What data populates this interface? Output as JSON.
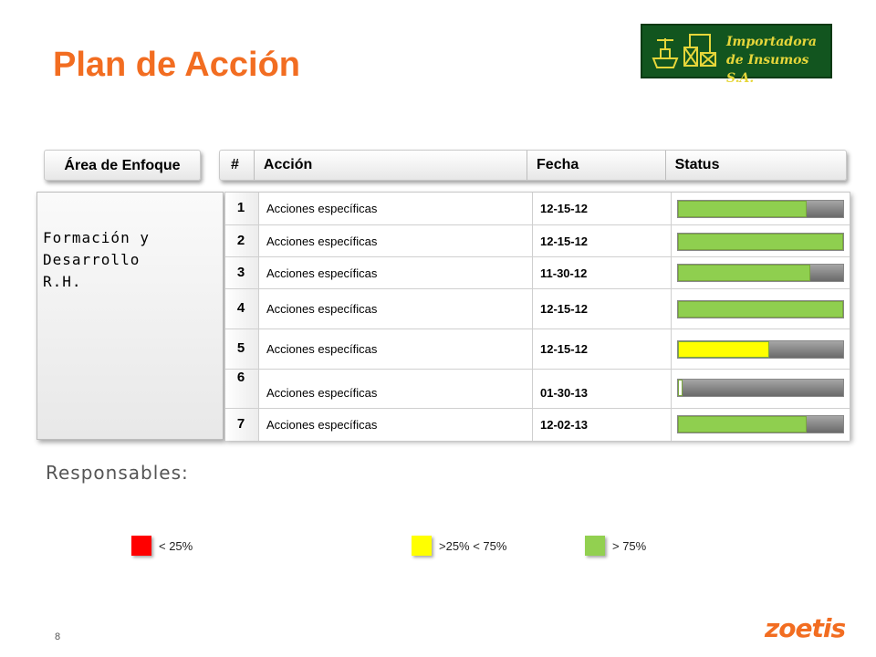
{
  "slide": {
    "title": "Plan de Acción",
    "page_number": "8",
    "brand": "zoetis"
  },
  "logo": {
    "line1": "Importadora",
    "line2": "de Insumos S.A."
  },
  "headers": {
    "area": "Área de Enfoque",
    "num": "#",
    "accion": "Acción",
    "fecha": "Fecha",
    "status": "Status"
  },
  "area": {
    "text": "Formación y\nDesarrollo\nR.H."
  },
  "rows": [
    {
      "num": "1",
      "accion": "Acciones específicas",
      "fecha": "12-15-12",
      "progress": 0.78,
      "color": "#8fcf4f"
    },
    {
      "num": "2",
      "accion": "Acciones específicas",
      "fecha": "12-15-12",
      "progress": 1.0,
      "color": "#8fcf4f"
    },
    {
      "num": "3",
      "accion": "Acciones específicas",
      "fecha": "11-30-12",
      "progress": 0.8,
      "color": "#8fcf4f"
    },
    {
      "num": "4",
      "accion": "Acciones específicas",
      "fecha": "12-15-12",
      "progress": 1.0,
      "color": "#8fcf4f"
    },
    {
      "num": "5",
      "accion": "Acciones específicas",
      "fecha": "12-15-12",
      "progress": 0.55,
      "color": "#ffff00"
    },
    {
      "num": "6",
      "accion": "Acciones específicas",
      "fecha": "01-30-13",
      "progress": 0.03,
      "color": "#ffffff"
    },
    {
      "num": "7",
      "accion": "Acciones específicas",
      "fecha": "12-02-13",
      "progress": 0.78,
      "color": "#8fcf4f"
    }
  ],
  "responsables_label": "Responsables:",
  "legend": [
    {
      "label": "< 25%",
      "color": "#ff0000"
    },
    {
      "label": ">25% < 75%",
      "color": "#ffff00"
    },
    {
      "label": "> 75%",
      "color": "#92d050"
    }
  ]
}
